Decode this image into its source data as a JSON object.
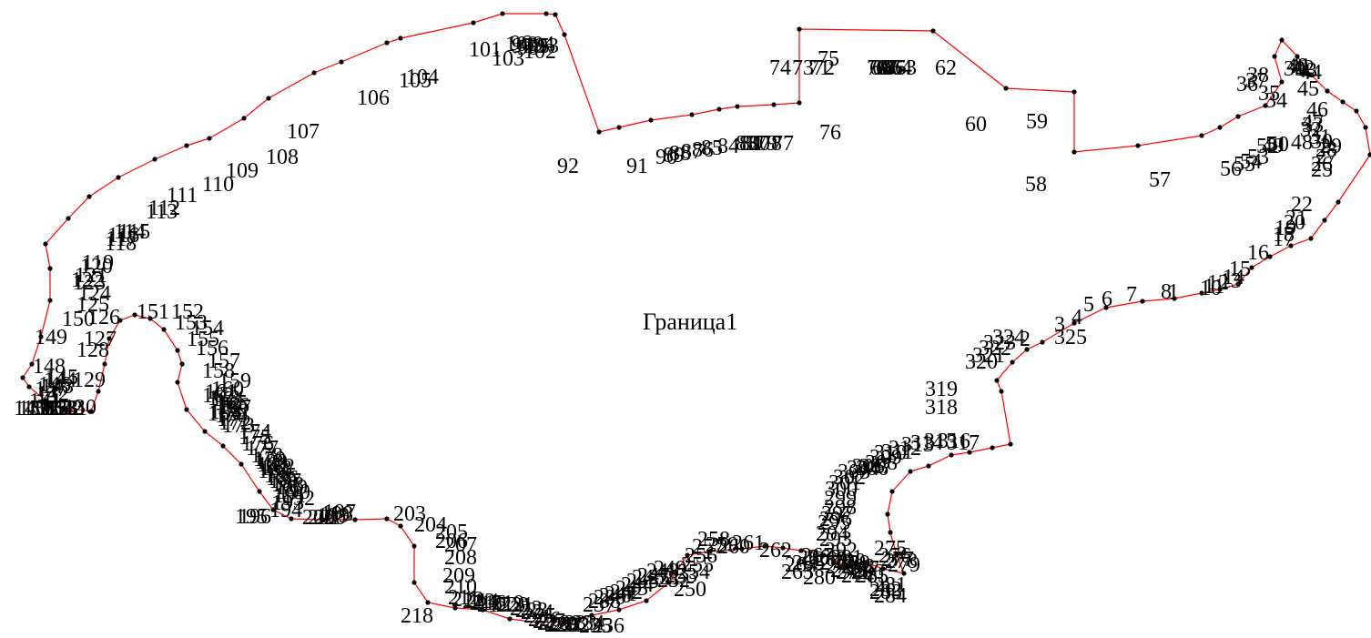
{
  "parcel": {
    "name": "Граница1",
    "boundary_color": "#ff0000",
    "vertex_color": "#000000",
    "labels": [
      "1",
      "2",
      "3",
      "4",
      "5",
      "6",
      "7",
      "8",
      "10",
      "11",
      "12",
      "13",
      "14",
      "15",
      "16",
      "17",
      "18",
      "19",
      "20",
      "21",
      "22",
      "25",
      "26",
      "27",
      "28",
      "29",
      "30",
      "31",
      "32",
      "33",
      "34",
      "35",
      "36",
      "37",
      "38",
      "39",
      "40",
      "41",
      "42",
      "43",
      "44",
      "45",
      "46",
      "47",
      "48",
      "49",
      "50",
      "51",
      "52",
      "53",
      "54",
      "55",
      "56",
      "57",
      "58",
      "59",
      "60",
      "62",
      "63",
      "64",
      "65",
      "66",
      "67",
      "68",
      "69",
      "70",
      "71",
      "72",
      "73",
      "74",
      "75",
      "76",
      "77",
      "78",
      "79",
      "80",
      "81",
      "82",
      "83",
      "84",
      "85",
      "86",
      "87",
      "88",
      "89",
      "90",
      "91",
      "92",
      "93",
      "94",
      "95",
      "96",
      "97",
      "98",
      "99",
      "100",
      "101",
      "102",
      "103",
      "104",
      "105",
      "106",
      "107",
      "108",
      "109",
      "110",
      "111",
      "112",
      "113",
      "114",
      "115",
      "116",
      "117",
      "118",
      "119",
      "120",
      "121",
      "122",
      "123",
      "124",
      "125",
      "126",
      "127",
      "128",
      "129",
      "130",
      "131",
      "132",
      "133",
      "134",
      "135",
      "136",
      "137",
      "138",
      "139",
      "140",
      "141",
      "142",
      "143",
      "144",
      "145",
      "146",
      "147",
      "148",
      "149",
      "150",
      "151",
      "152",
      "153",
      "154",
      "155",
      "156",
      "157",
      "158",
      "159",
      "160",
      "161",
      "162",
      "163",
      "164",
      "165",
      "166",
      "167",
      "168",
      "169",
      "170",
      "171",
      "172",
      "173",
      "174",
      "175",
      "176",
      "177",
      "178",
      "179",
      "180",
      "181",
      "182",
      "183",
      "184",
      "185",
      "186",
      "187",
      "188",
      "189",
      "190",
      "191",
      "192",
      "193",
      "194",
      "195",
      "196",
      "197",
      "198",
      "199",
      "200",
      "201",
      "202",
      "203",
      "204",
      "205",
      "206",
      "207",
      "208",
      "209",
      "210",
      "211",
      "212",
      "213",
      "214",
      "215",
      "216",
      "217",
      "218",
      "219",
      "220",
      "221",
      "222",
      "223",
      "224",
      "225",
      "226",
      "227",
      "228",
      "229",
      "230",
      "231",
      "232",
      "233",
      "234",
      "235",
      "236",
      "237",
      "238",
      "239",
      "240",
      "241",
      "242",
      "243",
      "244",
      "245",
      "246",
      "247",
      "248",
      "249",
      "250",
      "251",
      "252",
      "253",
      "254",
      "255",
      "256",
      "257",
      "258",
      "259",
      "260",
      "261",
      "262",
      "263",
      "264",
      "265",
      "266",
      "267",
      "268",
      "269",
      "270",
      "271",
      "272",
      "273",
      "274",
      "275",
      "276",
      "277",
      "278",
      "279",
      "280",
      "281",
      "282",
      "283",
      "284",
      "285",
      "286",
      "287",
      "288",
      "289",
      "290",
      "291",
      "292",
      "293",
      "294",
      "295",
      "296",
      "297",
      "298",
      "299",
      "300",
      "301",
      "302",
      "303",
      "304",
      "305",
      "306",
      "307",
      "308",
      "309",
      "310",
      "311",
      "312",
      "313",
      "314",
      "315",
      "316",
      "317",
      "318",
      "319",
      "320",
      "321",
      "322",
      "323",
      "324",
      "325"
    ]
  }
}
